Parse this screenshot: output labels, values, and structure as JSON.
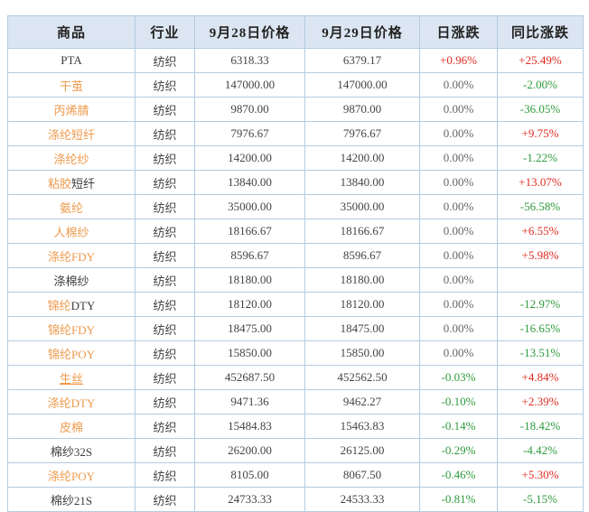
{
  "colors": {
    "up_red": "#e02b20",
    "down_green": "#2e9b3c",
    "flat_gray": "#666666",
    "link_orange": "#ee9a4d",
    "header_bg": "#dce6f2",
    "border_blue": "#b4cbe2",
    "header_text": "#222222",
    "text_dark": "#444444"
  },
  "table": {
    "columns": [
      {
        "key": "name",
        "label": "商品"
      },
      {
        "key": "industry",
        "label": "行业"
      },
      {
        "key": "price_0928",
        "label": "9月28日价格"
      },
      {
        "key": "price_0929",
        "label": "9月29日价格"
      },
      {
        "key": "daily",
        "label": "日涨跌"
      },
      {
        "key": "yoy",
        "label": "同比涨跌"
      }
    ],
    "rows": [
      {
        "name": [
          {
            "text": "PTA",
            "style": "plain"
          }
        ],
        "industry": "纺织",
        "price_0928": "6318.33",
        "price_0929": "6379.17",
        "daily": {
          "text": "+0.96%",
          "trend": "up"
        },
        "yoy": {
          "text": "+25.49%",
          "trend": "up"
        }
      },
      {
        "name": [
          {
            "text": "干茧",
            "style": "link"
          }
        ],
        "industry": "纺织",
        "price_0928": "147000.00",
        "price_0929": "147000.00",
        "daily": {
          "text": "0.00%",
          "trend": "flat"
        },
        "yoy": {
          "text": "-2.00%",
          "trend": "down"
        }
      },
      {
        "name": [
          {
            "text": "丙烯腈",
            "style": "link"
          }
        ],
        "industry": "纺织",
        "price_0928": "9870.00",
        "price_0929": "9870.00",
        "daily": {
          "text": "0.00%",
          "trend": "flat"
        },
        "yoy": {
          "text": "-36.05%",
          "trend": "down"
        }
      },
      {
        "name": [
          {
            "text": "涤纶短纤",
            "style": "link"
          }
        ],
        "industry": "纺织",
        "price_0928": "7976.67",
        "price_0929": "7976.67",
        "daily": {
          "text": "0.00%",
          "trend": "flat"
        },
        "yoy": {
          "text": "+9.75%",
          "trend": "up"
        }
      },
      {
        "name": [
          {
            "text": "涤纶纱",
            "style": "link"
          }
        ],
        "industry": "纺织",
        "price_0928": "14200.00",
        "price_0929": "14200.00",
        "daily": {
          "text": "0.00%",
          "trend": "flat"
        },
        "yoy": {
          "text": "-1.22%",
          "trend": "down"
        }
      },
      {
        "name": [
          {
            "text": "粘胶",
            "style": "link"
          },
          {
            "text": "短纤",
            "style": "plain"
          }
        ],
        "industry": "纺织",
        "price_0928": "13840.00",
        "price_0929": "13840.00",
        "daily": {
          "text": "0.00%",
          "trend": "flat"
        },
        "yoy": {
          "text": "+13.07%",
          "trend": "up"
        }
      },
      {
        "name": [
          {
            "text": "氨纶",
            "style": "link"
          }
        ],
        "industry": "纺织",
        "price_0928": "35000.00",
        "price_0929": "35000.00",
        "daily": {
          "text": "0.00%",
          "trend": "flat"
        },
        "yoy": {
          "text": "-56.58%",
          "trend": "down"
        }
      },
      {
        "name": [
          {
            "text": "人棉纱",
            "style": "link"
          }
        ],
        "industry": "纺织",
        "price_0928": "18166.67",
        "price_0929": "18166.67",
        "daily": {
          "text": "0.00%",
          "trend": "flat"
        },
        "yoy": {
          "text": "+6.55%",
          "trend": "up"
        }
      },
      {
        "name": [
          {
            "text": "涤纶FDY",
            "style": "link"
          }
        ],
        "industry": "纺织",
        "price_0928": "8596.67",
        "price_0929": "8596.67",
        "daily": {
          "text": "0.00%",
          "trend": "flat"
        },
        "yoy": {
          "text": "+5.98%",
          "trend": "up"
        }
      },
      {
        "name": [
          {
            "text": "涤棉纱",
            "style": "plain"
          }
        ],
        "industry": "纺织",
        "price_0928": "18180.00",
        "price_0929": "18180.00",
        "daily": {
          "text": "0.00%",
          "trend": "flat"
        },
        "yoy": {
          "text": "",
          "trend": "none"
        }
      },
      {
        "name": [
          {
            "text": "锦纶",
            "style": "link"
          },
          {
            "text": "DTY",
            "style": "plain"
          }
        ],
        "industry": "纺织",
        "price_0928": "18120.00",
        "price_0929": "18120.00",
        "daily": {
          "text": "0.00%",
          "trend": "flat"
        },
        "yoy": {
          "text": "-12.97%",
          "trend": "down"
        }
      },
      {
        "name": [
          {
            "text": "锦纶FDY",
            "style": "link"
          }
        ],
        "industry": "纺织",
        "price_0928": "18475.00",
        "price_0929": "18475.00",
        "daily": {
          "text": "0.00%",
          "trend": "flat"
        },
        "yoy": {
          "text": "-16.65%",
          "trend": "down"
        }
      },
      {
        "name": [
          {
            "text": "锦纶POY",
            "style": "link"
          }
        ],
        "industry": "纺织",
        "price_0928": "15850.00",
        "price_0929": "15850.00",
        "daily": {
          "text": "0.00%",
          "trend": "flat"
        },
        "yoy": {
          "text": "-13.51%",
          "trend": "down"
        }
      },
      {
        "name": [
          {
            "text": "生丝",
            "style": "link-hover"
          }
        ],
        "industry": "纺织",
        "price_0928": "452687.50",
        "price_0929": "452562.50",
        "daily": {
          "text": "-0.03%",
          "trend": "down"
        },
        "yoy": {
          "text": "+4.84%",
          "trend": "up"
        }
      },
      {
        "name": [
          {
            "text": "涤纶DTY",
            "style": "link"
          }
        ],
        "industry": "纺织",
        "price_0928": "9471.36",
        "price_0929": "9462.27",
        "daily": {
          "text": "-0.10%",
          "trend": "down"
        },
        "yoy": {
          "text": "+2.39%",
          "trend": "up"
        }
      },
      {
        "name": [
          {
            "text": "皮棉",
            "style": "link"
          }
        ],
        "industry": "纺织",
        "price_0928": "15484.83",
        "price_0929": "15463.83",
        "daily": {
          "text": "-0.14%",
          "trend": "down"
        },
        "yoy": {
          "text": "-18.42%",
          "trend": "down"
        }
      },
      {
        "name": [
          {
            "text": "棉纱32S",
            "style": "plain"
          }
        ],
        "industry": "纺织",
        "price_0928": "26200.00",
        "price_0929": "26125.00",
        "daily": {
          "text": "-0.29%",
          "trend": "down"
        },
        "yoy": {
          "text": "-4.42%",
          "trend": "down"
        }
      },
      {
        "name": [
          {
            "text": "涤纶POY",
            "style": "link"
          }
        ],
        "industry": "纺织",
        "price_0928": "8105.00",
        "price_0929": "8067.50",
        "daily": {
          "text": "-0.46%",
          "trend": "down"
        },
        "yoy": {
          "text": "+5.30%",
          "trend": "up"
        }
      },
      {
        "name": [
          {
            "text": "棉纱21S",
            "style": "plain"
          }
        ],
        "industry": "纺织",
        "price_0928": "24733.33",
        "price_0929": "24533.33",
        "daily": {
          "text": "-0.81%",
          "trend": "down"
        },
        "yoy": {
          "text": "-5.15%",
          "trend": "down"
        }
      }
    ]
  }
}
